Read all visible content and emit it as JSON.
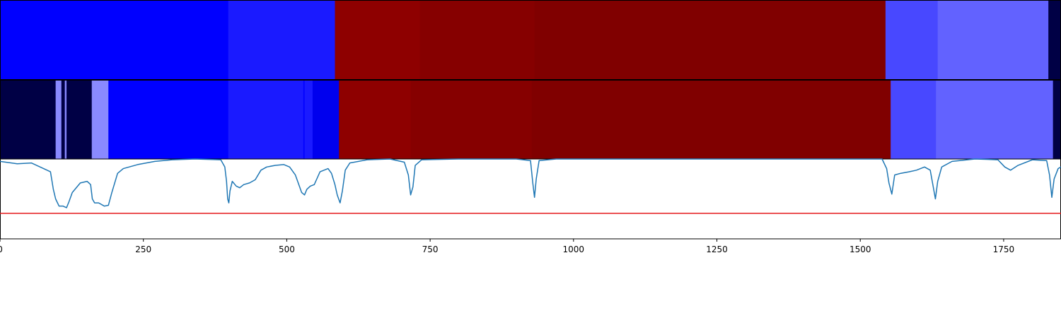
{
  "chart_data": {
    "type": "heatmap",
    "title": "",
    "xlabel": "",
    "ylabel": "",
    "xlim": [
      0,
      1850
    ],
    "x_ticks": [
      {
        "value": 0,
        "label": "0"
      },
      {
        "value": 250,
        "label": "250"
      },
      {
        "value": 500,
        "label": "500"
      },
      {
        "value": 750,
        "label": "750"
      },
      {
        "value": 1000,
        "label": "1000"
      },
      {
        "value": 1250,
        "label": "1250"
      },
      {
        "value": 1500,
        "label": "1500"
      },
      {
        "value": 1750,
        "label": "1750"
      }
    ],
    "segment_rows": [
      {
        "segments": [
          {
            "start": 0,
            "end": 398,
            "color": "#0000ff"
          },
          {
            "start": 398,
            "end": 584,
            "color": "#1a1aff"
          },
          {
            "start": 584,
            "end": 732,
            "color": "#8e0000"
          },
          {
            "start": 732,
            "end": 932,
            "color": "#860000"
          },
          {
            "start": 932,
            "end": 1544,
            "color": "#800000"
          },
          {
            "start": 1544,
            "end": 1635,
            "color": "#4848ff"
          },
          {
            "start": 1635,
            "end": 1828,
            "color": "#6262ff"
          },
          {
            "start": 1828,
            "end": 1850,
            "color": "#000045"
          }
        ]
      },
      {
        "segments": [
          {
            "start": 0,
            "end": 97,
            "color": "#000045"
          },
          {
            "start": 97,
            "end": 107,
            "color": "#8a8aff"
          },
          {
            "start": 107,
            "end": 113,
            "color": "#000045"
          },
          {
            "start": 113,
            "end": 116,
            "color": "#8a8aff"
          },
          {
            "start": 116,
            "end": 160,
            "color": "#000045"
          },
          {
            "start": 160,
            "end": 189,
            "color": "#8a8aff"
          },
          {
            "start": 189,
            "end": 398,
            "color": "#0000ff"
          },
          {
            "start": 398,
            "end": 529,
            "color": "#1a1aff"
          },
          {
            "start": 529,
            "end": 531,
            "color": "#0000ff"
          },
          {
            "start": 531,
            "end": 545,
            "color": "#1a1aff"
          },
          {
            "start": 545,
            "end": 591,
            "color": "#0000ee"
          },
          {
            "start": 591,
            "end": 716,
            "color": "#8e0000"
          },
          {
            "start": 716,
            "end": 927,
            "color": "#860000"
          },
          {
            "start": 927,
            "end": 1553,
            "color": "#800000"
          },
          {
            "start": 1553,
            "end": 1632,
            "color": "#4848ff"
          },
          {
            "start": 1632,
            "end": 1836,
            "color": "#6262ff"
          },
          {
            "start": 1836,
            "end": 1850,
            "color": "#000045"
          }
        ]
      }
    ],
    "line_panel": {
      "ylim": [
        0,
        1
      ],
      "line_color": "#1f77b4",
      "threshold": {
        "value": 0.32,
        "color": "#e41a1c"
      },
      "series": [
        {
          "x": 0,
          "y": 0.97
        },
        {
          "x": 30,
          "y": 0.94
        },
        {
          "x": 55,
          "y": 0.95
        },
        {
          "x": 70,
          "y": 0.9
        },
        {
          "x": 88,
          "y": 0.84
        },
        {
          "x": 93,
          "y": 0.62
        },
        {
          "x": 97,
          "y": 0.5
        },
        {
          "x": 103,
          "y": 0.41
        },
        {
          "x": 110,
          "y": 0.41
        },
        {
          "x": 116,
          "y": 0.39
        },
        {
          "x": 120,
          "y": 0.46
        },
        {
          "x": 126,
          "y": 0.58
        },
        {
          "x": 140,
          "y": 0.7
        },
        {
          "x": 152,
          "y": 0.72
        },
        {
          "x": 158,
          "y": 0.68
        },
        {
          "x": 161,
          "y": 0.5
        },
        {
          "x": 165,
          "y": 0.45
        },
        {
          "x": 172,
          "y": 0.45
        },
        {
          "x": 182,
          "y": 0.41
        },
        {
          "x": 189,
          "y": 0.42
        },
        {
          "x": 195,
          "y": 0.58
        },
        {
          "x": 205,
          "y": 0.82
        },
        {
          "x": 215,
          "y": 0.88
        },
        {
          "x": 240,
          "y": 0.93
        },
        {
          "x": 270,
          "y": 0.97
        },
        {
          "x": 300,
          "y": 0.99
        },
        {
          "x": 340,
          "y": 1.0
        },
        {
          "x": 385,
          "y": 0.99
        },
        {
          "x": 392,
          "y": 0.9
        },
        {
          "x": 395,
          "y": 0.72
        },
        {
          "x": 397,
          "y": 0.5
        },
        {
          "x": 399,
          "y": 0.45
        },
        {
          "x": 401,
          "y": 0.6
        },
        {
          "x": 405,
          "y": 0.72
        },
        {
          "x": 412,
          "y": 0.66
        },
        {
          "x": 418,
          "y": 0.64
        },
        {
          "x": 425,
          "y": 0.68
        },
        {
          "x": 435,
          "y": 0.7
        },
        {
          "x": 445,
          "y": 0.74
        },
        {
          "x": 455,
          "y": 0.86
        },
        {
          "x": 465,
          "y": 0.9
        },
        {
          "x": 480,
          "y": 0.92
        },
        {
          "x": 495,
          "y": 0.93
        },
        {
          "x": 505,
          "y": 0.9
        },
        {
          "x": 515,
          "y": 0.8
        },
        {
          "x": 520,
          "y": 0.7
        },
        {
          "x": 526,
          "y": 0.58
        },
        {
          "x": 531,
          "y": 0.55
        },
        {
          "x": 535,
          "y": 0.62
        },
        {
          "x": 541,
          "y": 0.66
        },
        {
          "x": 548,
          "y": 0.68
        },
        {
          "x": 553,
          "y": 0.76
        },
        {
          "x": 558,
          "y": 0.84
        },
        {
          "x": 565,
          "y": 0.86
        },
        {
          "x": 572,
          "y": 0.88
        },
        {
          "x": 578,
          "y": 0.82
        },
        {
          "x": 584,
          "y": 0.68
        },
        {
          "x": 588,
          "y": 0.55
        },
        {
          "x": 593,
          "y": 0.45
        },
        {
          "x": 597,
          "y": 0.6
        },
        {
          "x": 602,
          "y": 0.86
        },
        {
          "x": 610,
          "y": 0.95
        },
        {
          "x": 640,
          "y": 0.99
        },
        {
          "x": 680,
          "y": 1.0
        },
        {
          "x": 705,
          "y": 0.96
        },
        {
          "x": 712,
          "y": 0.8
        },
        {
          "x": 716,
          "y": 0.55
        },
        {
          "x": 720,
          "y": 0.65
        },
        {
          "x": 724,
          "y": 0.92
        },
        {
          "x": 735,
          "y": 0.99
        },
        {
          "x": 800,
          "y": 1.0
        },
        {
          "x": 900,
          "y": 1.0
        },
        {
          "x": 925,
          "y": 0.98
        },
        {
          "x": 929,
          "y": 0.7
        },
        {
          "x": 932,
          "y": 0.52
        },
        {
          "x": 935,
          "y": 0.75
        },
        {
          "x": 940,
          "y": 0.98
        },
        {
          "x": 970,
          "y": 1.0
        },
        {
          "x": 1100,
          "y": 1.0
        },
        {
          "x": 1300,
          "y": 1.0
        },
        {
          "x": 1500,
          "y": 1.0
        },
        {
          "x": 1538,
          "y": 1.0
        },
        {
          "x": 1546,
          "y": 0.88
        },
        {
          "x": 1550,
          "y": 0.7
        },
        {
          "x": 1555,
          "y": 0.56
        },
        {
          "x": 1560,
          "y": 0.8
        },
        {
          "x": 1570,
          "y": 0.82
        },
        {
          "x": 1585,
          "y": 0.84
        },
        {
          "x": 1598,
          "y": 0.86
        },
        {
          "x": 1612,
          "y": 0.9
        },
        {
          "x": 1622,
          "y": 0.86
        },
        {
          "x": 1626,
          "y": 0.7
        },
        {
          "x": 1631,
          "y": 0.5
        },
        {
          "x": 1635,
          "y": 0.72
        },
        {
          "x": 1642,
          "y": 0.9
        },
        {
          "x": 1660,
          "y": 0.97
        },
        {
          "x": 1700,
          "y": 1.0
        },
        {
          "x": 1740,
          "y": 0.99
        },
        {
          "x": 1752,
          "y": 0.9
        },
        {
          "x": 1762,
          "y": 0.86
        },
        {
          "x": 1775,
          "y": 0.92
        },
        {
          "x": 1800,
          "y": 0.99
        },
        {
          "x": 1825,
          "y": 0.98
        },
        {
          "x": 1830,
          "y": 0.8
        },
        {
          "x": 1834,
          "y": 0.52
        },
        {
          "x": 1838,
          "y": 0.75
        },
        {
          "x": 1845,
          "y": 0.88
        },
        {
          "x": 1850,
          "y": 0.9
        }
      ]
    },
    "grid": false,
    "legend": "none"
  }
}
